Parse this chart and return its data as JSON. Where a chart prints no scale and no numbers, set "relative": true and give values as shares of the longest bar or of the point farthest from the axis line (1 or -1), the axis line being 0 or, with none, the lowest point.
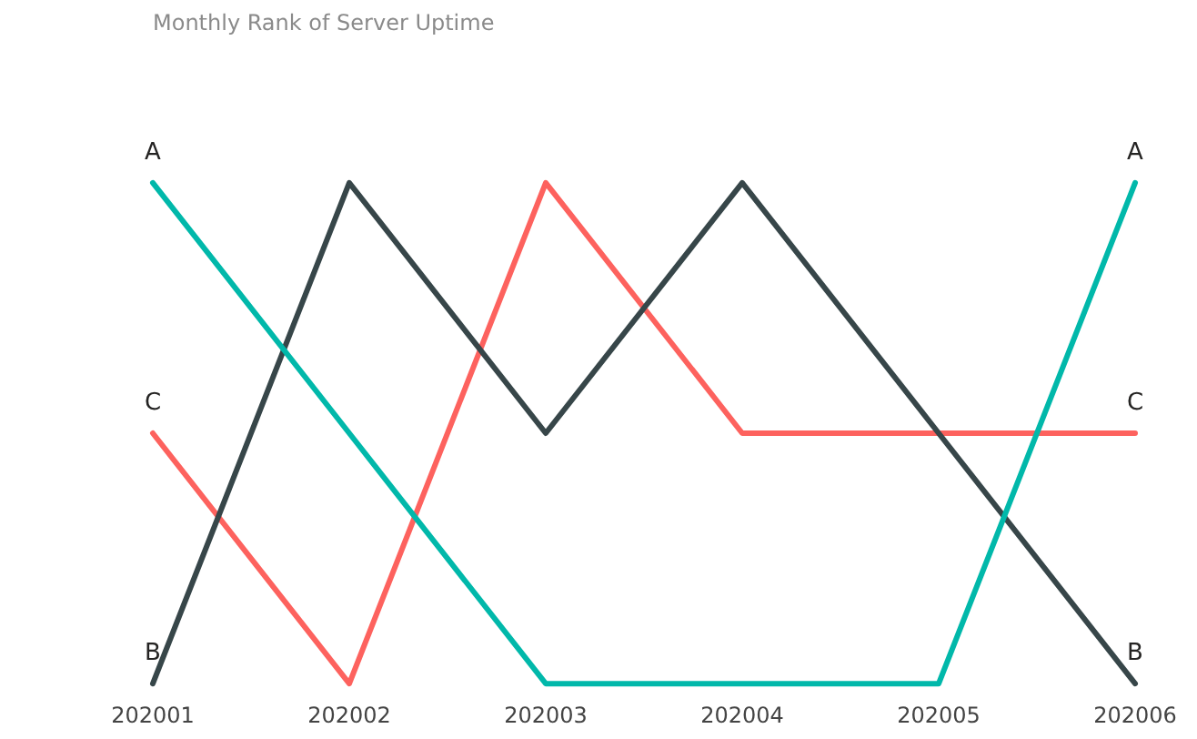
{
  "chart_data": {
    "type": "line",
    "title": "Monthly Rank of Server Uptime",
    "relative": true,
    "categories": [
      "202001",
      "202002",
      "202003",
      "202004",
      "202005",
      "202006"
    ],
    "series": [
      {
        "name": "A",
        "color": "#01b8aa",
        "values": [
          1,
          0.5,
          0,
          0,
          0,
          1
        ]
      },
      {
        "name": "B",
        "color": "#374649",
        "values": [
          0,
          1,
          0.5,
          1,
          0.5,
          0
        ]
      },
      {
        "name": "C",
        "color": "#fd625e",
        "values": [
          0.5,
          0,
          1,
          0.5,
          0.5,
          0.5
        ]
      }
    ]
  }
}
